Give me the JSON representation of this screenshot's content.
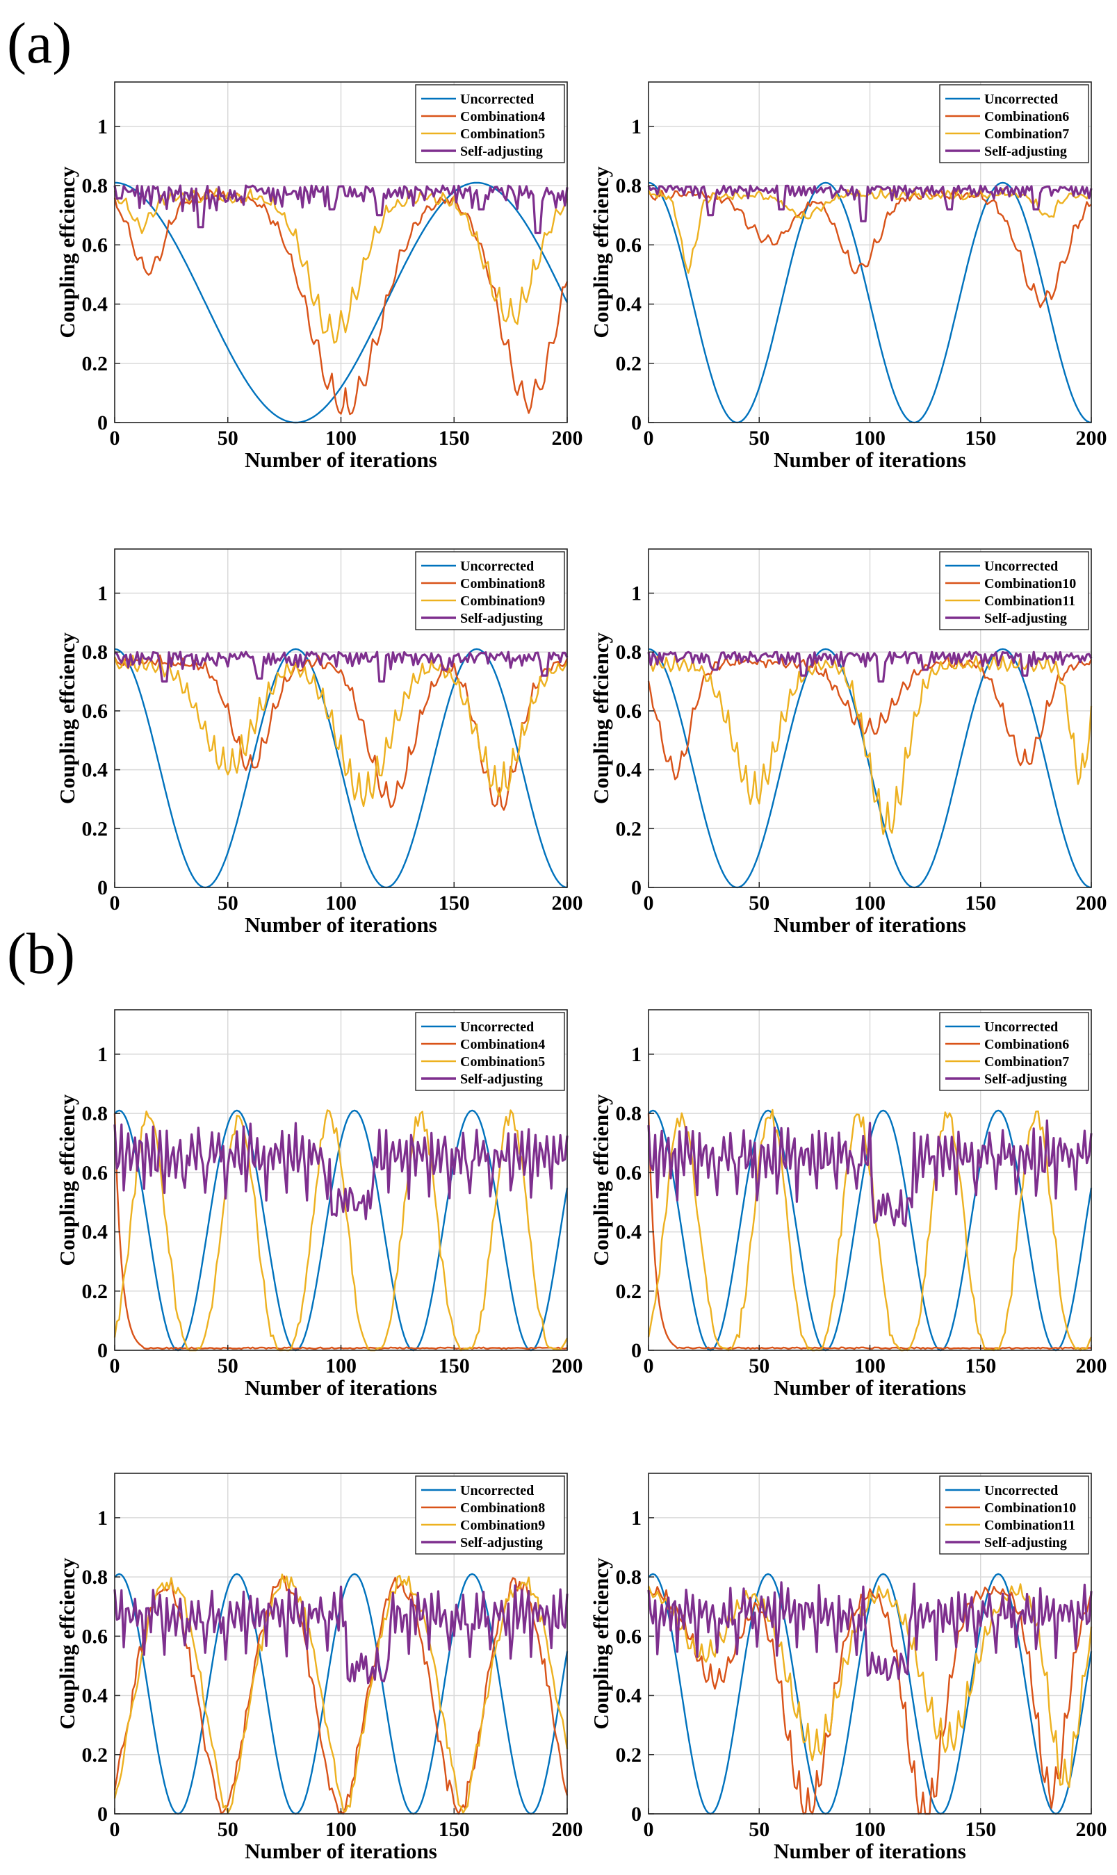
{
  "figure": {
    "panel_labels": [
      "(a)",
      "(b)"
    ],
    "colors": {
      "uncorrected": "#0072BD",
      "combination_a": "#D95319",
      "combination_b": "#EDB120",
      "self_adjusting": "#7E2F8E",
      "grid": "#d9d9d9",
      "axes": "#262626"
    }
  },
  "chart_data": [
    {
      "id": "a1",
      "panel": "(a)",
      "type": "line",
      "xlabel": "Number of iterations",
      "ylabel": "Coupling effciency",
      "xlim": [
        0,
        200
      ],
      "ylim": [
        0,
        1.15
      ],
      "xticks": [
        "0",
        "50",
        "100",
        "150",
        "200"
      ],
      "yticks": [
        "0",
        "0.2",
        "0.4",
        "0.6",
        "0.8",
        "1"
      ],
      "grid": true,
      "legend_position": "top-right",
      "series": [
        {
          "name": "Uncorrected",
          "model": {
            "kind": "cos",
            "period": 160,
            "phase": 0,
            "peak": 0.81,
            "power": 2
          }
        },
        {
          "name": "Combination4",
          "model": {
            "kind": "dips",
            "base": 0.79,
            "osc": 0.07,
            "osc_period": 6,
            "dips": [
              [
                15,
                0.55,
                10
              ],
              [
                102,
                0.12,
                22
              ],
              [
                183,
                0.14,
                18
              ]
            ]
          }
        },
        {
          "name": "Combination5",
          "model": {
            "kind": "dips",
            "base": 0.79,
            "osc": 0.1,
            "osc_period": 5,
            "dips": [
              [
                12,
                0.7,
                6
              ],
              [
                97,
                0.37,
                16
              ],
              [
                175,
                0.42,
                15
              ]
            ]
          }
        },
        {
          "name": "Self-adjusting",
          "model": {
            "kind": "selfadj",
            "base": 0.8,
            "amp": 0.09,
            "dips": [
              [
                38,
                0.66
              ],
              [
                96,
                0.72
              ],
              [
                117,
                0.7
              ],
              [
                162,
                0.72
              ],
              [
                187,
                0.64
              ]
            ]
          }
        }
      ]
    },
    {
      "id": "a2",
      "panel": "(a)",
      "type": "line",
      "xlabel": "Number of iterations",
      "ylabel": "Coupling effciency",
      "xlim": [
        0,
        200
      ],
      "ylim": [
        0,
        1.15
      ],
      "xticks": [
        "0",
        "50",
        "100",
        "150",
        "200"
      ],
      "yticks": [
        "0",
        "0.2",
        "0.4",
        "0.6",
        "0.8",
        "1"
      ],
      "grid": true,
      "legend_position": "top-right",
      "series": [
        {
          "name": "Uncorrected",
          "model": {
            "kind": "cos",
            "period": 80,
            "phase": 0,
            "peak": 0.81,
            "power": 2
          }
        },
        {
          "name": "Combination6",
          "model": {
            "kind": "dips",
            "base": 0.79,
            "osc": 0.06,
            "osc_period": 6,
            "dips": [
              [
                55,
                0.64,
                14
              ],
              [
                95,
                0.55,
                12
              ],
              [
                178,
                0.45,
                14
              ]
            ]
          }
        },
        {
          "name": "Combination7",
          "model": {
            "kind": "dips",
            "base": 0.79,
            "osc": 0.06,
            "osc_period": 5,
            "dips": [
              [
                18,
                0.56,
                5
              ],
              [
                70,
                0.72,
                10
              ],
              [
                180,
                0.72,
                6
              ]
            ]
          }
        },
        {
          "name": "Self-adjusting",
          "model": {
            "kind": "selfadj",
            "base": 0.8,
            "amp": 0.05,
            "dips": [
              [
                28,
                0.7
              ],
              [
                60,
                0.72
              ],
              [
                97,
                0.68
              ],
              [
                136,
                0.72
              ],
              [
                175,
                0.72
              ]
            ]
          }
        }
      ]
    },
    {
      "id": "a3",
      "panel": "(a)",
      "type": "line",
      "xlabel": "Number of iterations",
      "ylabel": "Coupling effciency",
      "xlim": [
        0,
        200
      ],
      "ylim": [
        0,
        1.15
      ],
      "xticks": [
        "0",
        "50",
        "100",
        "150",
        "200"
      ],
      "yticks": [
        "0",
        "0.2",
        "0.4",
        "0.6",
        "0.8",
        "1"
      ],
      "grid": true,
      "legend_position": "top-right",
      "series": [
        {
          "name": "Uncorrected",
          "model": {
            "kind": "cos",
            "period": 80,
            "phase": 0,
            "peak": 0.81,
            "power": 2
          }
        },
        {
          "name": "Combination8",
          "model": {
            "kind": "dips",
            "base": 0.79,
            "osc": 0.08,
            "osc_period": 5,
            "dips": [
              [
                60,
                0.46,
                12
              ],
              [
                122,
                0.36,
                14
              ],
              [
                170,
                0.34,
                12
              ]
            ]
          }
        },
        {
          "name": "Combination9",
          "model": {
            "kind": "dips",
            "base": 0.79,
            "osc": 0.12,
            "osc_period": 4,
            "dips": [
              [
                50,
                0.48,
                16
              ],
              [
                110,
                0.4,
                16
              ],
              [
                170,
                0.42,
                14
              ]
            ]
          }
        },
        {
          "name": "Self-adjusting",
          "model": {
            "kind": "selfadj",
            "base": 0.8,
            "amp": 0.06,
            "dips": [
              [
                22,
                0.7
              ],
              [
                64,
                0.71
              ],
              [
                118,
                0.7
              ],
              [
                146,
                0.74
              ],
              [
                190,
                0.72
              ]
            ]
          }
        }
      ]
    },
    {
      "id": "a4",
      "panel": "(a)",
      "type": "line",
      "xlabel": "Number of iterations",
      "ylabel": "Coupling effciency",
      "xlim": [
        0,
        200
      ],
      "ylim": [
        0,
        1.15
      ],
      "xticks": [
        "0",
        "50",
        "100",
        "150",
        "200"
      ],
      "yticks": [
        "0",
        "0.2",
        "0.4",
        "0.6",
        "0.8",
        "1"
      ],
      "grid": true,
      "legend_position": "top-right",
      "series": [
        {
          "name": "Uncorrected",
          "model": {
            "kind": "cos",
            "period": 80,
            "phase": 0,
            "peak": 0.81,
            "power": 2
          }
        },
        {
          "name": "Combination10",
          "model": {
            "kind": "dips",
            "base": 0.79,
            "osc": 0.08,
            "osc_period": 5,
            "dips": [
              [
                12,
                0.45,
                10
              ],
              [
                100,
                0.58,
                16
              ],
              [
                170,
                0.48,
                12
              ]
            ]
          }
        },
        {
          "name": "Combination11",
          "model": {
            "kind": "dips",
            "base": 0.79,
            "osc": 0.12,
            "osc_period": 4,
            "dips": [
              [
                48,
                0.4,
                14
              ],
              [
                108,
                0.3,
                12
              ],
              [
                195,
                0.45,
                6
              ]
            ]
          }
        },
        {
          "name": "Self-adjusting",
          "model": {
            "kind": "selfadj",
            "base": 0.8,
            "amp": 0.05,
            "dips": [
              [
                30,
                0.74
              ],
              [
                70,
                0.72
              ],
              [
                105,
                0.7
              ],
              [
                125,
                0.74
              ],
              [
                170,
                0.72
              ]
            ]
          }
        }
      ]
    },
    {
      "id": "b1",
      "panel": "(b)",
      "type": "line",
      "xlabel": "Number of iterations",
      "ylabel": "Coupling effciency",
      "xlim": [
        0,
        200
      ],
      "ylim": [
        0,
        1.15
      ],
      "xticks": [
        "0",
        "50",
        "100",
        "150",
        "200"
      ],
      "yticks": [
        "0",
        "0.2",
        "0.4",
        "0.6",
        "0.8",
        "1"
      ],
      "grid": true,
      "legend_position": "top-right",
      "series": [
        {
          "name": "Uncorrected",
          "model": {
            "kind": "cos",
            "period": 52,
            "phase": 2,
            "peak": 0.81,
            "power": 2
          }
        },
        {
          "name": "Combination4",
          "model": {
            "kind": "drop",
            "start": 0.8,
            "end": 0.0,
            "tau": 3,
            "until": 12
          }
        },
        {
          "name": "Combination5",
          "model": {
            "kind": "cos",
            "period": 40,
            "phase": 15,
            "peak": 0.79,
            "power": 3,
            "jitter": 0.06
          }
        },
        {
          "name": "Self-adjusting",
          "model": {
            "kind": "selfadj2",
            "base": 0.79,
            "low": 0.5,
            "amp": 0.15,
            "dips": [
              [
                105,
                0.44
              ]
            ]
          }
        }
      ]
    },
    {
      "id": "b2",
      "panel": "(b)",
      "type": "line",
      "xlabel": "Number of iterations",
      "ylabel": "Coupling effciency",
      "xlim": [
        0,
        200
      ],
      "ylim": [
        0,
        1.15
      ],
      "xticks": [
        "0",
        "50",
        "100",
        "150",
        "200"
      ],
      "yticks": [
        "0",
        "0.2",
        "0.4",
        "0.6",
        "0.8",
        "1"
      ],
      "grid": true,
      "legend_position": "top-right",
      "series": [
        {
          "name": "Uncorrected",
          "model": {
            "kind": "cos",
            "period": 52,
            "phase": 2,
            "peak": 0.81,
            "power": 2
          }
        },
        {
          "name": "Combination6",
          "model": {
            "kind": "drop",
            "start": 0.8,
            "end": 0.0,
            "tau": 3,
            "until": 12
          }
        },
        {
          "name": "Combination7",
          "model": {
            "kind": "cos",
            "period": 40,
            "phase": 15,
            "peak": 0.79,
            "power": 3,
            "jitter": 0.06
          }
        },
        {
          "name": "Self-adjusting",
          "model": {
            "kind": "selfadj2",
            "base": 0.79,
            "low": 0.5,
            "amp": 0.15,
            "dips": [
              [
                110,
                0.42
              ]
            ]
          }
        }
      ]
    },
    {
      "id": "b3",
      "panel": "(b)",
      "type": "line",
      "xlabel": "Number of iterations",
      "ylabel": "Coupling effciency",
      "xlim": [
        0,
        200
      ],
      "ylim": [
        0,
        1.15
      ],
      "xticks": [
        "0",
        "50",
        "100",
        "150",
        "200"
      ],
      "yticks": [
        "0",
        "0.2",
        "0.4",
        "0.6",
        "0.8",
        "1"
      ],
      "grid": true,
      "legend_position": "top-right",
      "series": [
        {
          "name": "Uncorrected",
          "model": {
            "kind": "cos",
            "period": 52,
            "phase": 2,
            "peak": 0.81,
            "power": 2
          }
        },
        {
          "name": "Combination8",
          "model": {
            "kind": "cos",
            "period": 52,
            "phase": 22,
            "peak": 0.78,
            "power": 1.6,
            "jitter": 0.07
          }
        },
        {
          "name": "Combination9",
          "model": {
            "kind": "cos",
            "period": 52,
            "phase": 24,
            "peak": 0.79,
            "power": 1.3,
            "jitter": 0.06
          }
        },
        {
          "name": "Self-adjusting",
          "model": {
            "kind": "selfadj2",
            "base": 0.79,
            "low": 0.52,
            "amp": 0.13,
            "dips": [
              [
                112,
                0.44
              ]
            ]
          }
        }
      ]
    },
    {
      "id": "b4",
      "panel": "(b)",
      "type": "line",
      "xlabel": "Number of iterations",
      "ylabel": "Coupling effciency",
      "xlim": [
        0,
        200
      ],
      "ylim": [
        0,
        1.15
      ],
      "xticks": [
        "0",
        "50",
        "100",
        "150",
        "200"
      ],
      "yticks": [
        "0",
        "0.2",
        "0.4",
        "0.6",
        "0.8",
        "1"
      ],
      "grid": true,
      "legend_position": "top-right",
      "series": [
        {
          "name": "Uncorrected",
          "model": {
            "kind": "cos",
            "period": 52,
            "phase": 2,
            "peak": 0.81,
            "power": 2
          }
        },
        {
          "name": "Combination10",
          "model": {
            "kind": "dips",
            "base": 0.78,
            "osc": 0.09,
            "osc_period": 4,
            "dips": [
              [
                30,
                0.5,
                14
              ],
              [
                72,
                0.1,
                14
              ],
              [
                125,
                0.08,
                12
              ],
              [
                182,
                0.15,
                10
              ]
            ]
          }
        },
        {
          "name": "Combination11",
          "model": {
            "kind": "dips",
            "base": 0.79,
            "osc": 0.1,
            "osc_period": 4,
            "dips": [
              [
                25,
                0.58,
                14
              ],
              [
                75,
                0.3,
                16
              ],
              [
                135,
                0.32,
                16
              ],
              [
                188,
                0.2,
                10
              ]
            ]
          }
        },
        {
          "name": "Self-adjusting",
          "model": {
            "kind": "selfadj2",
            "base": 0.79,
            "low": 0.52,
            "amp": 0.12,
            "dips": [
              [
                108,
                0.43
              ]
            ]
          }
        }
      ]
    }
  ]
}
